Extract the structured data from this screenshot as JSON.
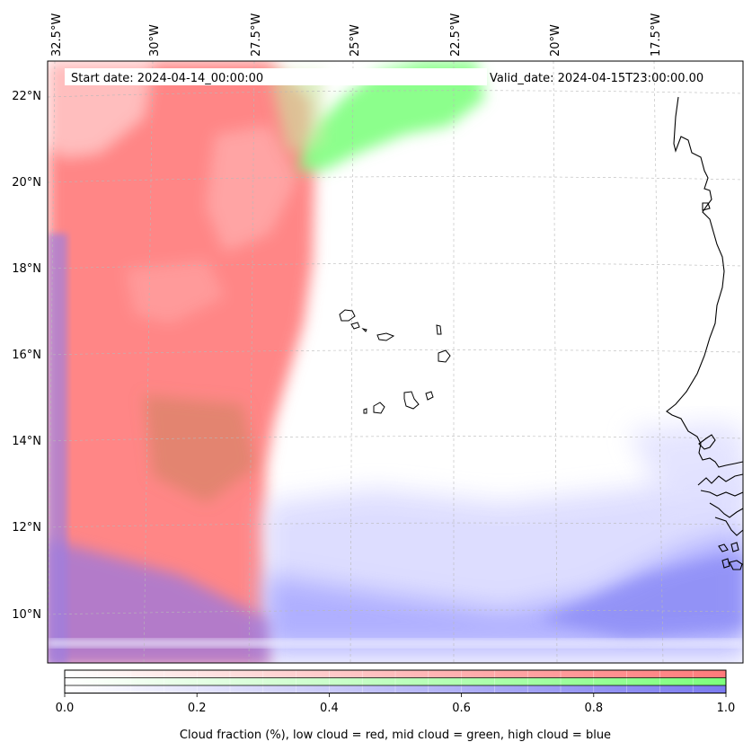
{
  "map": {
    "start_date_label": "Start date: 2024-04-14_00:00:00",
    "valid_date_label": "Valid_date: 2024-04-15T23:00:00.00",
    "lon_labels": [
      "32.5°W",
      "30°W",
      "27.5°W",
      "25°W",
      "22.5°W",
      "20°W",
      "17.5°W"
    ],
    "lat_labels": [
      "22°N",
      "20°N",
      "18°N",
      "16°N",
      "14°N",
      "12°N",
      "10°N"
    ],
    "extent": {
      "lon_min": -33.0,
      "lon_max": -15.5,
      "lat_min": 8.8,
      "lat_max": 22.8
    },
    "gridlines": true,
    "layers": [
      {
        "name": "low cloud",
        "color": "#ff8080"
      },
      {
        "name": "mid cloud",
        "color": "#80ff80"
      },
      {
        "name": "high cloud",
        "color": "#8080ff"
      }
    ]
  },
  "colorbar": {
    "ticks": [
      "0.0",
      "0.2",
      "0.4",
      "0.6",
      "0.8",
      "1.0"
    ],
    "range": [
      0.0,
      1.0
    ],
    "label": "Cloud fraction (%), low cloud = red, mid cloud = green, high cloud = blue",
    "colors": {
      "low": "#ff7a7a",
      "mid": "#7dff7d",
      "high": "#7b7bf0"
    }
  }
}
